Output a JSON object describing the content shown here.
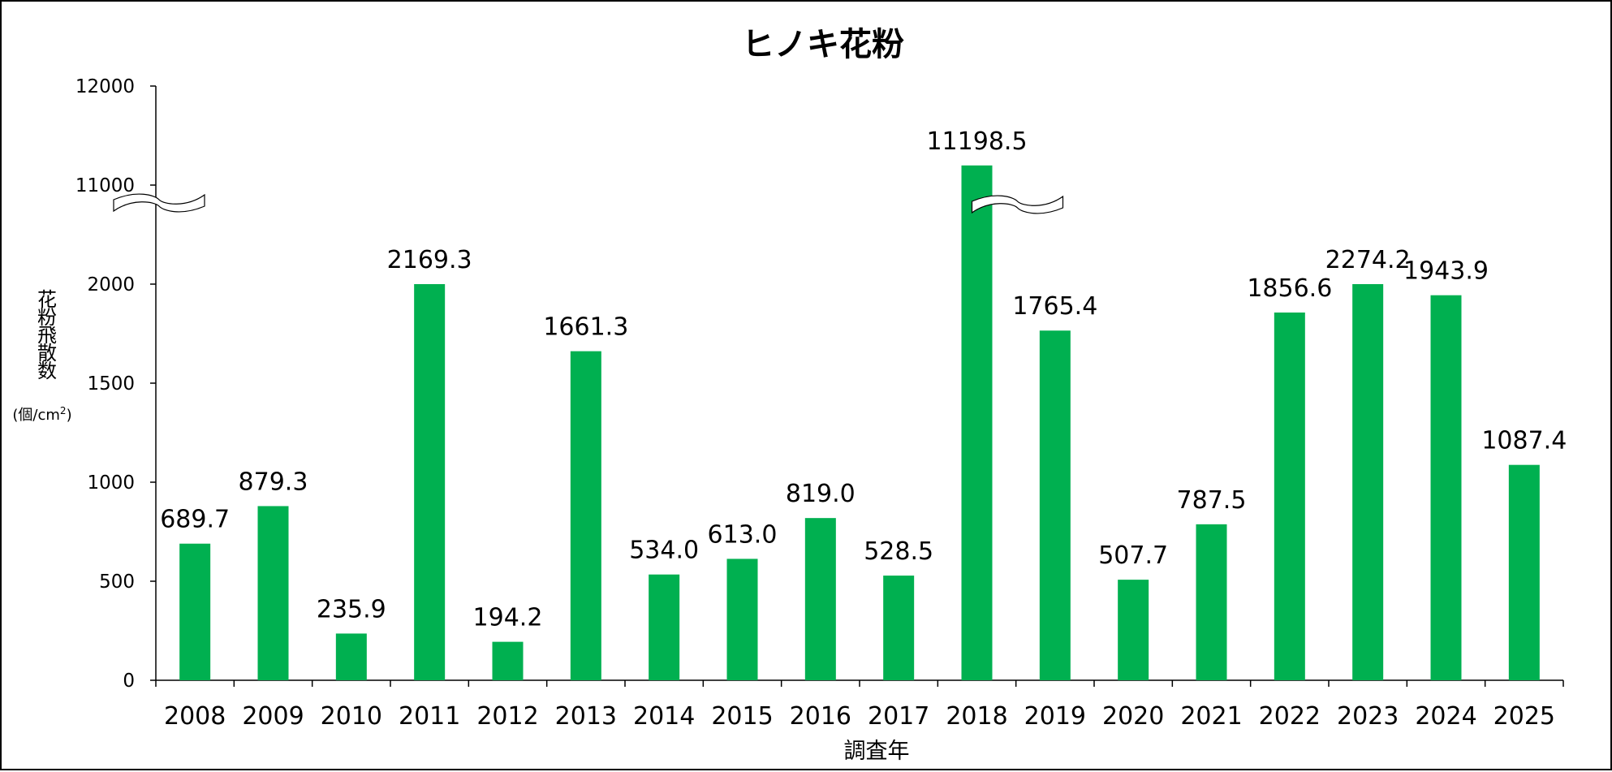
{
  "chart_data": {
    "type": "bar",
    "title": "ヒノキ花粉",
    "xlabel": "調査年",
    "ylabel": "花粉飛散数",
    "yunit_prefix": "(個/cm",
    "yunit_sup": "2",
    "yunit_suffix": ")",
    "categories": [
      "2008",
      "2009",
      "2010",
      "2011",
      "2012",
      "2013",
      "2014",
      "2015",
      "2016",
      "2017",
      "2018",
      "2019",
      "2020",
      "2021",
      "2022",
      "2023",
      "2024",
      "2025"
    ],
    "values": [
      689.7,
      879.3,
      235.9,
      2169.3,
      194.2,
      1661.3,
      534.0,
      613.0,
      819.0,
      528.5,
      11198.5,
      1765.4,
      507.7,
      787.5,
      1856.6,
      2274.2,
      1943.9,
      1087.4
    ],
    "value_labels": [
      "689.7",
      "879.3",
      "235.9",
      "2169.3",
      "194.2",
      "1661.3",
      "534.0",
      "613.0",
      "819.0",
      "528.5",
      "11198.5",
      "1765.4",
      "507.7",
      "787.5",
      "1856.6",
      "2274.2",
      "1943.9",
      "1087.4"
    ],
    "yticks": [
      "0",
      "500",
      "1000",
      "1500",
      "2000",
      "11000",
      "12000"
    ],
    "axis_break": {
      "lower_max": 2000,
      "upper_min": 11000,
      "upper_max": 12000
    },
    "ylim": [
      0,
      12000
    ],
    "grid": false,
    "legend": "none",
    "bar_color": "#00B050"
  }
}
